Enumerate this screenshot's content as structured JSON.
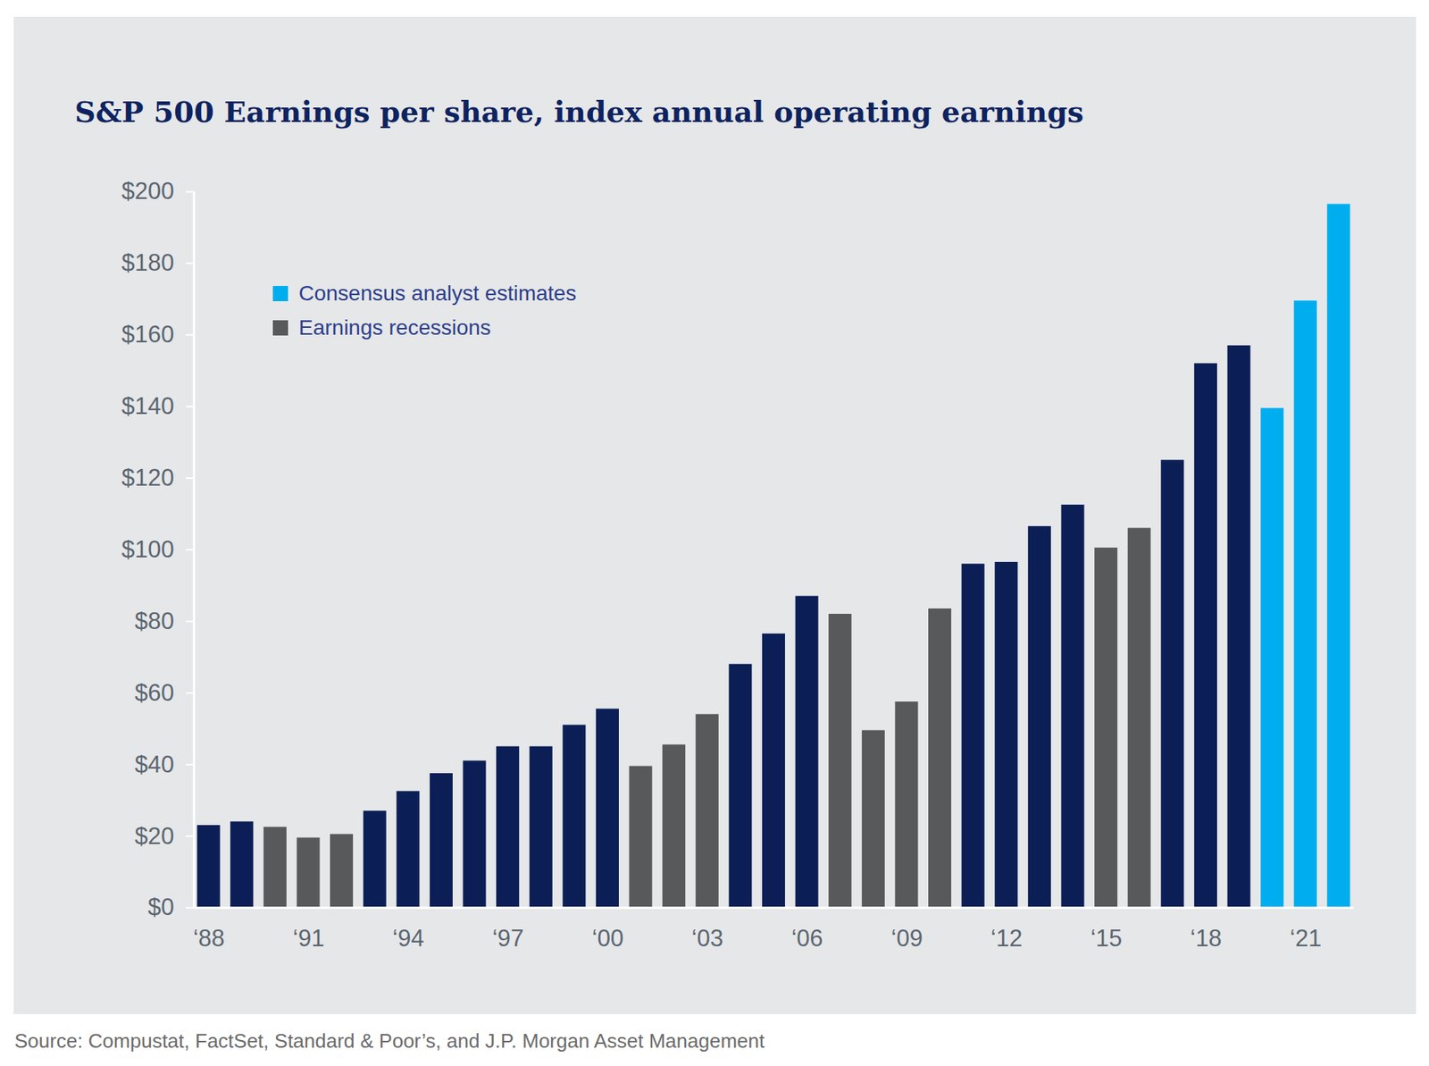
{
  "chart_data": {
    "type": "bar",
    "title": "S&P 500 Earnings per share, index annual operating earnings",
    "caption": "Source: Compustat, FactSet, Standard & Poor’s, and J.P. Morgan Asset Management",
    "categories": [
      "‘88",
      null,
      null,
      "‘91",
      null,
      null,
      "‘94",
      null,
      null,
      "‘97",
      null,
      null,
      "‘00",
      null,
      null,
      "‘03",
      null,
      null,
      "‘06",
      null,
      null,
      "‘09",
      null,
      null,
      "‘12",
      null,
      null,
      "‘15",
      null,
      null,
      "‘18",
      null,
      null,
      "‘21",
      null
    ],
    "series": [
      {
        "color": "#0b1f56",
        "values": [
          23,
          24,
          null,
          null,
          null,
          27,
          32.5,
          37.5,
          41,
          45,
          45,
          51,
          55.5,
          null,
          null,
          null,
          68,
          76.5,
          87,
          null,
          null,
          null,
          null,
          96,
          96.5,
          106.5,
          112.5,
          null,
          null,
          125,
          152,
          157,
          null,
          null,
          null
        ]
      },
      {
        "name": "Earnings recessions",
        "color": "#58595b",
        "values": [
          null,
          null,
          22.5,
          19.5,
          20.5,
          null,
          null,
          null,
          null,
          null,
          null,
          null,
          null,
          39.5,
          45.5,
          54,
          null,
          null,
          null,
          82,
          49.5,
          57.5,
          83.5,
          null,
          null,
          null,
          null,
          100.5,
          106,
          null,
          null,
          null,
          null,
          null,
          null
        ]
      },
      {
        "name": "Consensus analyst estimates",
        "color": "#00aeef",
        "values": [
          null,
          null,
          null,
          null,
          null,
          null,
          null,
          null,
          null,
          null,
          null,
          null,
          null,
          null,
          null,
          null,
          null,
          null,
          null,
          null,
          null,
          null,
          null,
          null,
          null,
          null,
          null,
          null,
          null,
          null,
          null,
          null,
          139.5,
          169.5,
          196.5
        ]
      }
    ],
    "ylim": [
      0,
      200
    ],
    "yticks": [
      {
        "value": 0,
        "label": "$0"
      },
      {
        "value": 20,
        "label": "$20"
      },
      {
        "value": 40,
        "label": "$40"
      },
      {
        "value": 60,
        "label": "$60"
      },
      {
        "value": 80,
        "label": "$80"
      },
      {
        "value": 100,
        "label": "$100"
      },
      {
        "value": 120,
        "label": "$120"
      },
      {
        "value": 140,
        "label": "$140"
      },
      {
        "value": 160,
        "label": "$160"
      },
      {
        "value": 180,
        "label": "$180"
      },
      {
        "value": 200,
        "label": "$200"
      }
    ],
    "grid": false,
    "legend": "upper left"
  }
}
